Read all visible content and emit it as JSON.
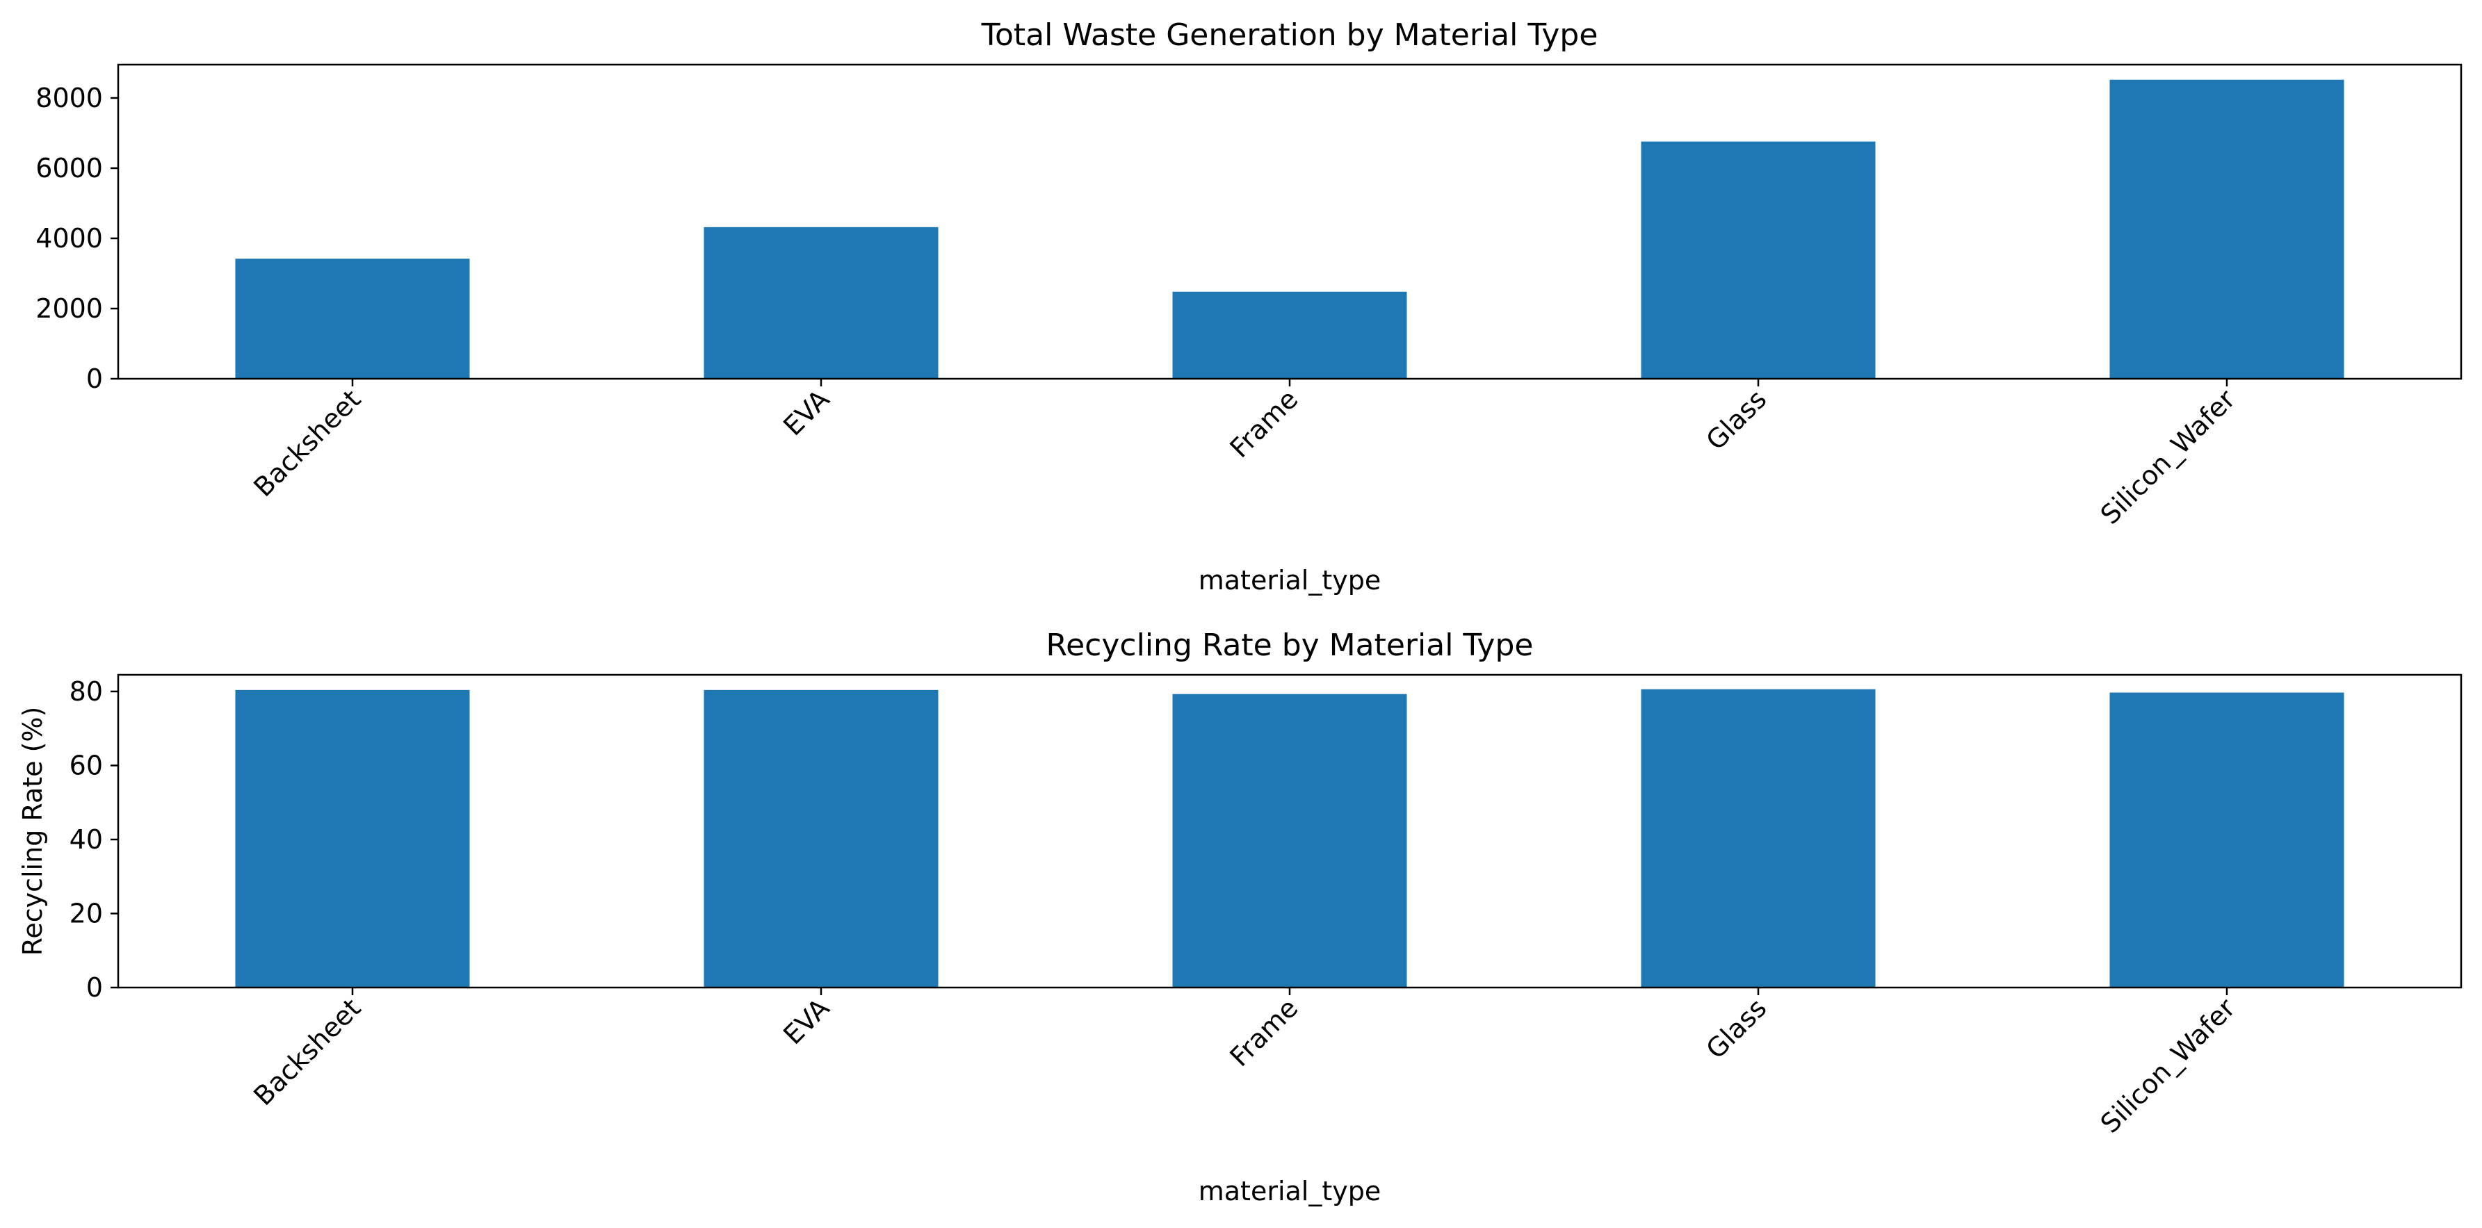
{
  "chart_data": [
    {
      "type": "bar",
      "title": "Total Waste Generation by Material Type",
      "xlabel": "material_type",
      "ylabel": "",
      "categories": [
        "Backsheet",
        "EVA",
        "Frame",
        "Glass",
        "Silicon_Wafer"
      ],
      "values": [
        3420,
        4320,
        2480,
        6760,
        8520
      ],
      "ylim": [
        0,
        8950
      ],
      "yticks": [
        0,
        2000,
        4000,
        6000,
        8000
      ],
      "color": "#1f77b4",
      "grid": false,
      "legend": "none"
    },
    {
      "type": "bar",
      "title": "Recycling Rate by Material Type",
      "xlabel": "material_type",
      "ylabel": "Recycling Rate (%)",
      "categories": [
        "Backsheet",
        "EVA",
        "Frame",
        "Glass",
        "Silicon_Wafer"
      ],
      "values": [
        80.4,
        80.4,
        79.3,
        80.6,
        79.7
      ],
      "ylim": [
        0,
        84.5
      ],
      "yticks": [
        0,
        20,
        40,
        60,
        80
      ],
      "color": "#1f77b4",
      "grid": false,
      "legend": "none"
    }
  ]
}
